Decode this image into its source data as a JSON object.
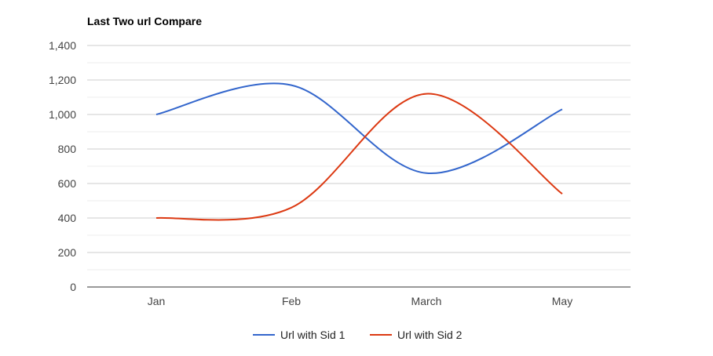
{
  "chart_data": {
    "type": "line",
    "title": "Last Two url Compare",
    "xlabel": "",
    "ylabel": "",
    "categories": [
      "Jan",
      "Feb",
      "March",
      "May"
    ],
    "ylim": [
      0,
      1400
    ],
    "y_ticks": [
      0,
      200,
      400,
      600,
      800,
      1000,
      1200,
      1400
    ],
    "y_tick_labels": [
      "0",
      "200",
      "400",
      "600",
      "800",
      "1,000",
      "1,200",
      "1,400"
    ],
    "grid": true,
    "curve": "smooth",
    "legend_position": "bottom",
    "series": [
      {
        "name": "Url with Sid 1",
        "color": "#3366cc",
        "values": [
          1000,
          1170,
          660,
          1030
        ]
      },
      {
        "name": "Url with Sid 2",
        "color": "#dc3912",
        "values": [
          400,
          460,
          1120,
          540
        ]
      }
    ]
  }
}
